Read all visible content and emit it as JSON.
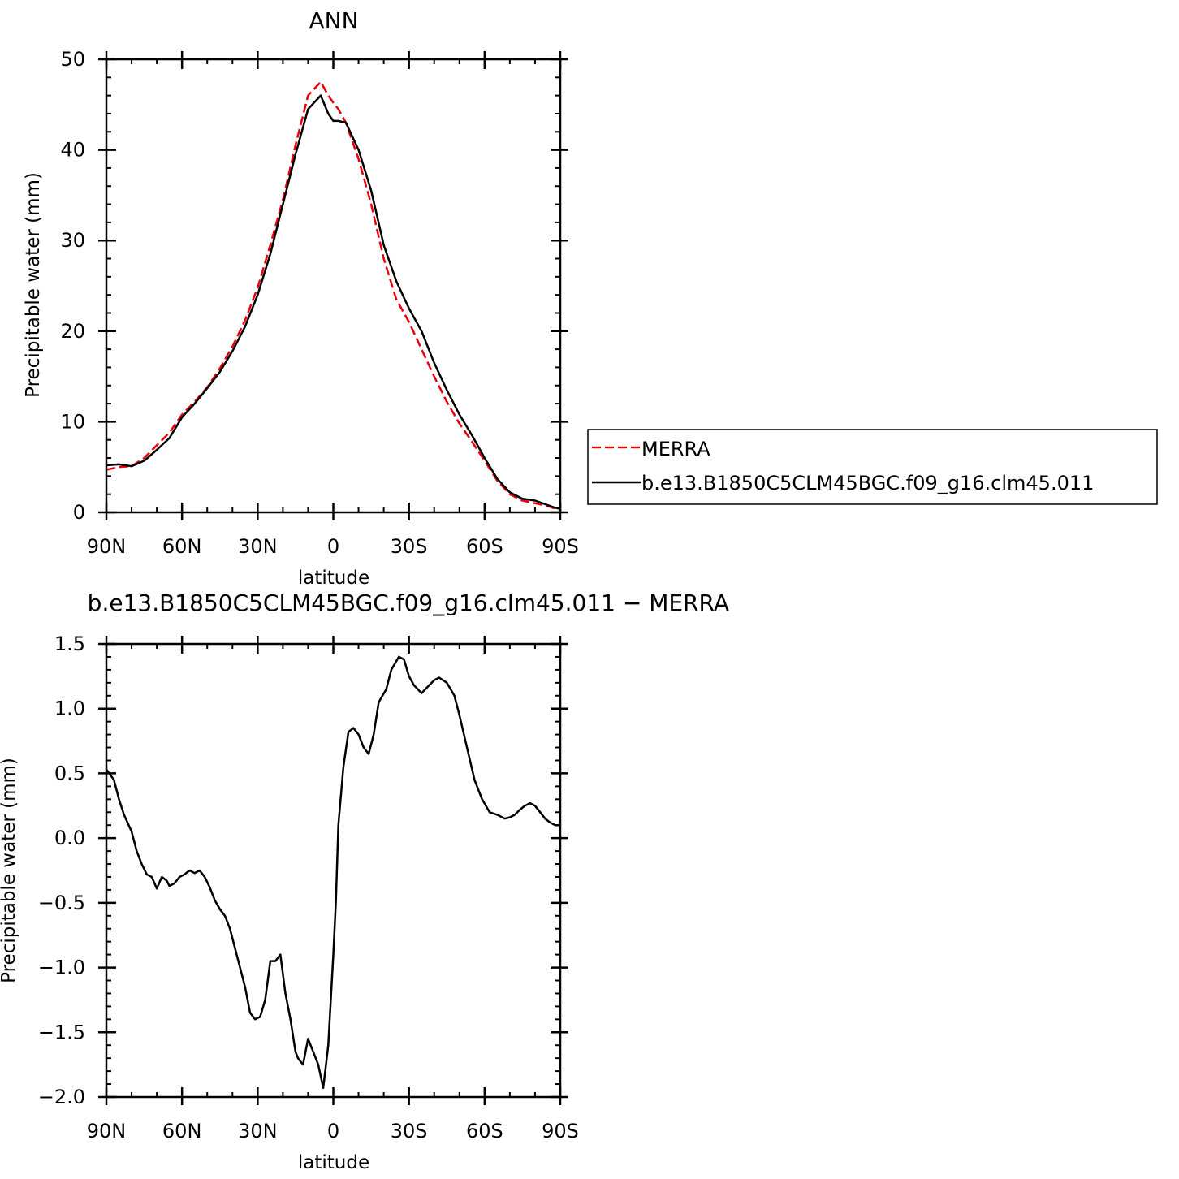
{
  "chart_data": [
    {
      "type": "line",
      "title": "ANN",
      "xlabel": "latitude",
      "ylabel": "Precipitable water (mm)",
      "xlim": [
        90,
        -90
      ],
      "ylim": [
        0,
        50
      ],
      "x_tick_values": [
        90,
        60,
        30,
        0,
        -30,
        -60,
        -90
      ],
      "x_ticks": [
        "90N",
        "60N",
        "30N",
        "0",
        "30S",
        "60S",
        "90S"
      ],
      "y_ticks": [
        "0",
        "10",
        "20",
        "30",
        "40",
        "50"
      ],
      "grid": false,
      "legend": "right",
      "series": [
        {
          "name": "MERRA",
          "color": "#e8000b",
          "dash": "dashed",
          "x": [
            90,
            85,
            80,
            75,
            70,
            65,
            60,
            55,
            50,
            45,
            40,
            35,
            30,
            25,
            20,
            15,
            10,
            5,
            2,
            0,
            -2,
            -5,
            -10,
            -15,
            -20,
            -25,
            -30,
            -35,
            -40,
            -45,
            -50,
            -55,
            -60,
            -65,
            -70,
            -75,
            -80,
            -85,
            -88,
            -90
          ],
          "y": [
            4.7,
            5.0,
            5.1,
            6.0,
            7.4,
            8.8,
            10.8,
            12.2,
            13.8,
            15.9,
            18.3,
            21.2,
            24.8,
            29.5,
            34.5,
            40.5,
            46.0,
            47.5,
            46.0,
            45.2,
            44.5,
            43.0,
            39.0,
            34.0,
            28.0,
            23.5,
            21.0,
            18.0,
            15.0,
            12.2,
            9.8,
            7.8,
            5.7,
            3.5,
            2.0,
            1.3,
            1.0,
            0.7,
            0.4,
            0.3
          ]
        },
        {
          "name": "b.e13.B1850C5CLM45BGC.f09_g16.clm45.011",
          "color": "#000000",
          "dash": "solid",
          "x": [
            90,
            85,
            80,
            75,
            70,
            65,
            60,
            55,
            50,
            45,
            40,
            35,
            30,
            25,
            20,
            15,
            10,
            5,
            2,
            0,
            -2,
            -5,
            -10,
            -15,
            -20,
            -25,
            -30,
            -35,
            -40,
            -45,
            -50,
            -55,
            -60,
            -65,
            -70,
            -75,
            -80,
            -85,
            -88,
            -90
          ],
          "y": [
            5.2,
            5.3,
            5.1,
            5.7,
            6.9,
            8.2,
            10.5,
            12.0,
            13.7,
            15.5,
            17.8,
            20.5,
            24.0,
            28.5,
            34.0,
            39.5,
            44.5,
            46.0,
            44.0,
            43.2,
            43.2,
            43.0,
            40.0,
            35.5,
            29.5,
            25.5,
            22.5,
            20.0,
            16.5,
            13.5,
            10.8,
            8.5,
            6.0,
            3.7,
            2.2,
            1.5,
            1.3,
            0.8,
            0.5,
            0.4
          ]
        }
      ]
    },
    {
      "type": "line",
      "title": "b.e13.B1850C5CLM45BGC.f09_g16.clm45.011 − MERRA",
      "xlabel": "latitude",
      "ylabel": "Precipitable water (mm)",
      "xlim": [
        90,
        -90
      ],
      "ylim": [
        -2.0,
        1.5
      ],
      "x_tick_values": [
        90,
        60,
        30,
        0,
        -30,
        -60,
        -90
      ],
      "x_ticks": [
        "90N",
        "60N",
        "30N",
        "0",
        "30S",
        "60S",
        "90S"
      ],
      "y_ticks": [
        "−2.0",
        "−1.5",
        "−1.0",
        "−0.5",
        "0.0",
        "0.5",
        "1.0",
        "1.5"
      ],
      "grid": false,
      "series": [
        {
          "color": "#000000",
          "dash": "solid",
          "x": [
            90,
            87,
            85,
            83,
            80,
            78,
            76,
            74,
            72,
            70,
            68,
            66,
            65,
            63,
            61,
            59,
            57,
            55,
            53,
            51,
            49,
            47,
            45,
            43,
            41,
            39,
            37,
            35,
            33,
            31,
            29,
            27,
            25,
            23,
            21,
            19,
            17,
            15,
            14,
            12,
            10,
            8,
            6,
            4,
            2,
            0,
            -1,
            -2,
            -4,
            -6,
            -8,
            -10,
            -12,
            -14,
            -16,
            -18,
            -21,
            -23,
            -26,
            -28,
            -30,
            -32,
            -35,
            -38,
            -40,
            -42,
            -45,
            -48,
            -50,
            -53,
            -56,
            -59,
            -62,
            -65,
            -68,
            -70,
            -72,
            -74,
            -76,
            -78,
            -80,
            -82,
            -84,
            -86,
            -88,
            -90
          ],
          "y": [
            0.53,
            0.45,
            0.3,
            0.18,
            0.05,
            -0.1,
            -0.2,
            -0.28,
            -0.3,
            -0.39,
            -0.3,
            -0.33,
            -0.37,
            -0.35,
            -0.3,
            -0.28,
            -0.25,
            -0.27,
            -0.25,
            -0.3,
            -0.38,
            -0.48,
            -0.55,
            -0.6,
            -0.7,
            -0.85,
            -1.0,
            -1.15,
            -1.35,
            -1.4,
            -1.38,
            -1.25,
            -0.95,
            -0.95,
            -0.9,
            -1.2,
            -1.4,
            -1.65,
            -1.7,
            -1.75,
            -1.55,
            -1.65,
            -1.75,
            -1.93,
            -1.6,
            -0.9,
            -0.5,
            0.1,
            0.55,
            0.82,
            0.85,
            0.8,
            0.7,
            0.65,
            0.8,
            1.05,
            1.15,
            1.3,
            1.4,
            1.38,
            1.25,
            1.18,
            1.12,
            1.18,
            1.22,
            1.24,
            1.2,
            1.1,
            0.95,
            0.7,
            0.45,
            0.3,
            0.2,
            0.18,
            0.15,
            0.16,
            0.18,
            0.22,
            0.25,
            0.27,
            0.25,
            0.2,
            0.15,
            0.12,
            0.1,
            0.1
          ]
        }
      ]
    }
  ]
}
